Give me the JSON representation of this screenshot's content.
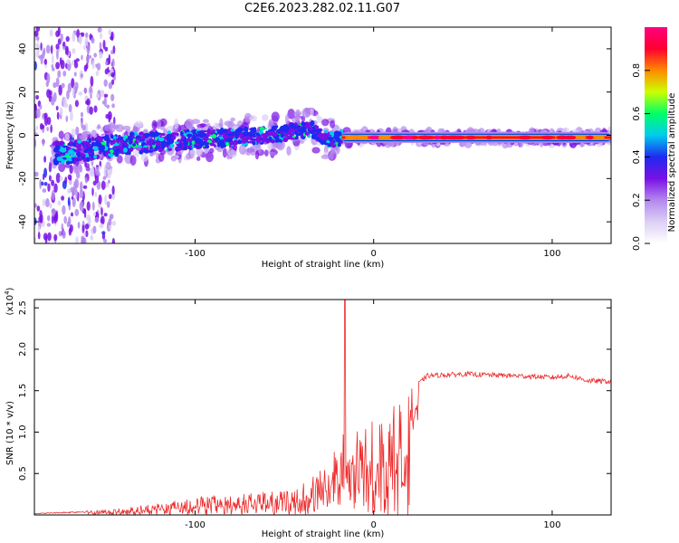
{
  "title": "C2E6.2023.282.02.11.G07",
  "chart_data": [
    {
      "type": "heatmap",
      "xlabel": "Height of straight line (km)",
      "ylabel": "Frequency (Hz)",
      "xlim": [
        -190,
        133
      ],
      "ylim": [
        -50,
        50
      ],
      "xticks": [
        -100,
        0,
        100
      ],
      "yticks": [
        -40,
        -20,
        0,
        20,
        40
      ],
      "colorbar": {
        "label": "Normalized spectral amplitude",
        "range": [
          0.0,
          1.0
        ],
        "ticks": [
          "0.0",
          "0.2",
          "0.4",
          "0.6",
          "0.8"
        ],
        "colormap": [
          "#ffffff",
          "#dcd0f5",
          "#b388ee",
          "#7a10e6",
          "#1e2af0",
          "#00ccee",
          "#00ff66",
          "#ccff00",
          "#ff8a00",
          "#ff0030",
          "#ff0080"
        ]
      },
      "band_center_hz": [
        {
          "x": -170,
          "y": -8
        },
        {
          "x": -140,
          "y": -4
        },
        {
          "x": -100,
          "y": -2
        },
        {
          "x": -60,
          "y": 0
        },
        {
          "x": -35,
          "y": 3
        },
        {
          "x": -25,
          "y": -2
        },
        {
          "x": -15,
          "y": -1
        },
        {
          "x": 0,
          "y": -1
        },
        {
          "x": 133,
          "y": -1
        }
      ]
    },
    {
      "type": "line",
      "xlabel": "Height of straight line (km)",
      "ylabel": "SNR (10 * v/v)",
      "yscale_label": "(x10",
      "yscale_exp": "4",
      "xlim": [
        -190,
        133
      ],
      "ylim": [
        0,
        2.6
      ],
      "xticks": [
        -100,
        0,
        100
      ],
      "yticks": [
        0.5,
        1.0,
        1.5,
        2.0,
        2.5
      ],
      "ytick_labels": [
        "0.5",
        "1.0",
        "1.5",
        "2.0",
        "2.5"
      ],
      "line_color": "#ee2b2b",
      "envelope": [
        {
          "x": -190,
          "y": 0.02
        },
        {
          "x": -150,
          "y": 0.06
        },
        {
          "x": -120,
          "y": 0.15
        },
        {
          "x": -100,
          "y": 0.22
        },
        {
          "x": -80,
          "y": 0.25
        },
        {
          "x": -60,
          "y": 0.28
        },
        {
          "x": -45,
          "y": 0.3
        },
        {
          "x": -35,
          "y": 0.45
        },
        {
          "x": -25,
          "y": 0.7
        },
        {
          "x": -17,
          "y": 1.0
        },
        {
          "x": -10,
          "y": 1.0
        },
        {
          "x": 0,
          "y": 1.15
        },
        {
          "x": 10,
          "y": 1.3
        },
        {
          "x": 20,
          "y": 1.5
        },
        {
          "x": 30,
          "y": 1.7
        },
        {
          "x": 50,
          "y": 1.72
        },
        {
          "x": 80,
          "y": 1.7
        },
        {
          "x": 100,
          "y": 1.68
        },
        {
          "x": 110,
          "y": 1.7
        },
        {
          "x": 120,
          "y": 1.64
        },
        {
          "x": 133,
          "y": 1.63
        }
      ],
      "peak": {
        "x": -16,
        "y": 2.6
      }
    }
  ]
}
